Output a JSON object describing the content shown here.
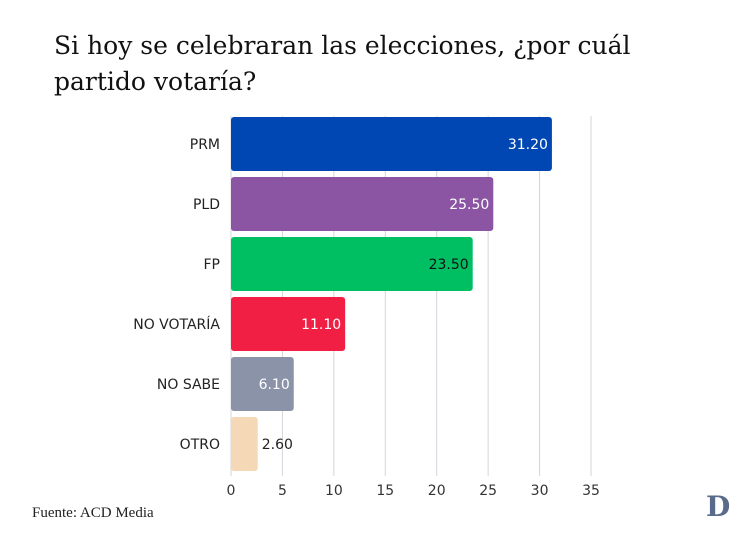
{
  "title": "Si hoy se celebraran las elecciones, ¿por cuál partido votaría?",
  "source": "Fuente: ACD Media",
  "logo": "D",
  "chart_data": {
    "type": "bar",
    "orientation": "horizontal",
    "title": "Si hoy se celebraran las elecciones, ¿por cuál partido votaría?",
    "categories": [
      "PRM",
      "PLD",
      "FP",
      "NO VOTARÍA",
      "NO SABE",
      "OTRO"
    ],
    "values": [
      31.2,
      25.5,
      23.5,
      11.1,
      6.1,
      2.6
    ],
    "data_labels": [
      "31.20",
      "25.50",
      "23.50",
      "11.10",
      "6.10",
      "2.60"
    ],
    "colors": [
      "#0047b3",
      "#8b55a3",
      "#00bf63",
      "#f21f45",
      "#8a93a8",
      "#f5d8b5"
    ],
    "label_colors": [
      "#ffffff",
      "#ffffff",
      "#111111",
      "#ffffff",
      "#ffffff",
      "#222222"
    ],
    "xlim": [
      0,
      35
    ],
    "xticks": [
      0,
      5,
      10,
      15,
      20,
      25,
      30,
      35
    ],
    "xlabel": "",
    "ylabel": "",
    "grid": true
  }
}
